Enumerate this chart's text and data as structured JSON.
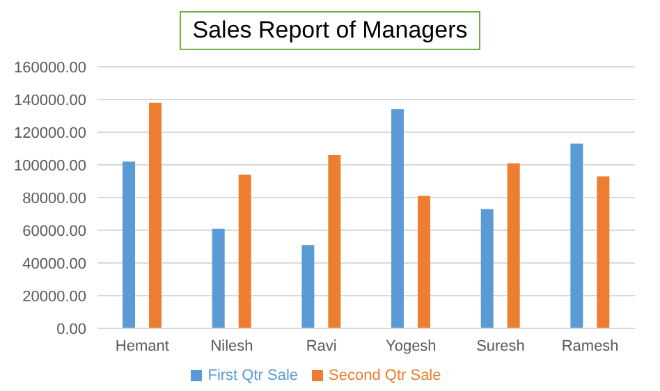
{
  "chart_data": {
    "type": "bar",
    "title": "Sales Report of Managers",
    "categories": [
      "Hemant",
      "Nilesh",
      "Ravi",
      "Yogesh",
      "Suresh",
      "Ramesh"
    ],
    "series": [
      {
        "name": "First Qtr Sale",
        "color": "#5b9bd5",
        "values": [
          102000,
          61000,
          51000,
          134000,
          73000,
          113000
        ]
      },
      {
        "name": "Second Qtr Sale",
        "color": "#ed7d31",
        "values": [
          138000,
          94000,
          106000,
          81000,
          101000,
          93000
        ]
      }
    ],
    "ylim": [
      0,
      160000
    ],
    "yticks": [
      {
        "value": 0,
        "label": "0.00"
      },
      {
        "value": 20000,
        "label": "20000.00"
      },
      {
        "value": 40000,
        "label": "40000.00"
      },
      {
        "value": 60000,
        "label": "60000.00"
      },
      {
        "value": 80000,
        "label": "80000.00"
      },
      {
        "value": 100000,
        "label": "100000.00"
      },
      {
        "value": 120000,
        "label": "120000.00"
      },
      {
        "value": 140000,
        "label": "140000.00"
      },
      {
        "value": 160000,
        "label": "160000.00"
      }
    ],
    "grid": "y",
    "legend": "bottom"
  }
}
